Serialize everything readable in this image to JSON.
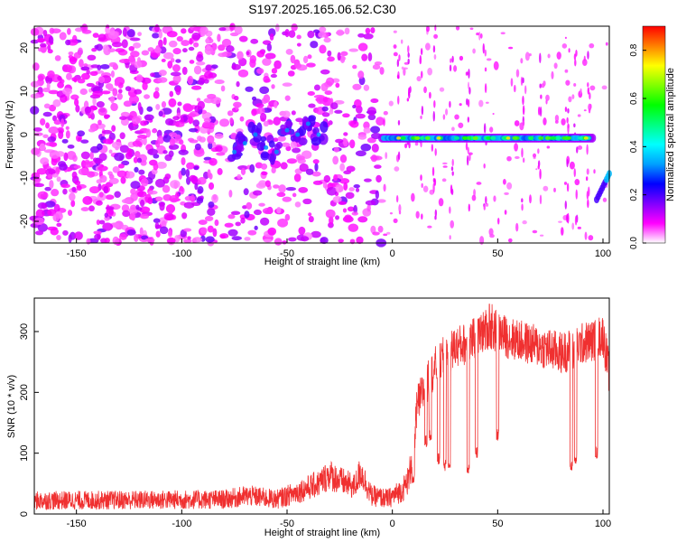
{
  "title": "S197.2025.165.06.52.C30",
  "chart_data": [
    {
      "type": "heatmap",
      "xlabel": "Height of straight line (km)",
      "ylabel": "Frequency (Hz)",
      "xlim": [
        -170,
        103
      ],
      "ylim": [
        -25,
        25
      ],
      "xticks": [
        -150,
        -100,
        -50,
        0,
        50,
        100
      ],
      "yticks": [
        -20,
        -10,
        0,
        10,
        20
      ],
      "colorbar": {
        "label": "Normalized spectral amplitude",
        "range": [
          0,
          0.9
        ],
        "ticks": [
          0.0,
          0.2,
          0.4,
          0.6,
          0.8
        ],
        "tick_labels": [
          "0.0",
          "0.2",
          "0.4",
          "0.6",
          "0.8"
        ],
        "colormap": [
          "#ffffff",
          "#ff00ff",
          "#8000ff",
          "#0000ff",
          "#00a0ff",
          "#00ffff",
          "#00ff80",
          "#00ff00",
          "#80ff00",
          "#ffff00",
          "#ff8000",
          "#ff0000"
        ]
      },
      "features": {
        "noise_region_x": [
          -170,
          -5
        ],
        "carrier_band_x": [
          -5,
          95
        ],
        "carrier_band_freq": -0.8,
        "wandering_track": [
          {
            "x": -75,
            "f": -4
          },
          {
            "x": -70,
            "f": -2
          },
          {
            "x": -65,
            "f": 0
          },
          {
            "x": -60,
            "f": -3
          },
          {
            "x": -55,
            "f": -4
          },
          {
            "x": -50,
            "f": 1
          },
          {
            "x": -45,
            "f": 0
          },
          {
            "x": -40,
            "f": 2.5
          },
          {
            "x": -35,
            "f": 0
          }
        ],
        "tail_x": [
          97,
          103
        ],
        "tail_freq": [
          -15,
          -9
        ]
      }
    },
    {
      "type": "line",
      "xlabel": "Height of straight line (km)",
      "ylabel": "SNR (10 * v/v)",
      "xlim": [
        -170,
        103
      ],
      "ylim": [
        0,
        355
      ],
      "xticks": [
        -150,
        -100,
        -50,
        0,
        50,
        100
      ],
      "yticks": [
        0,
        100,
        200,
        300
      ],
      "color": "#f03030",
      "trend": [
        {
          "x": -170,
          "y": 22
        },
        {
          "x": -80,
          "y": 24
        },
        {
          "x": -68,
          "y": 30
        },
        {
          "x": -55,
          "y": 24
        },
        {
          "x": -50,
          "y": 30
        },
        {
          "x": -35,
          "y": 50
        },
        {
          "x": -30,
          "y": 65
        },
        {
          "x": -25,
          "y": 55
        },
        {
          "x": -18,
          "y": 45
        },
        {
          "x": -15,
          "y": 70
        },
        {
          "x": -10,
          "y": 30
        },
        {
          "x": -2,
          "y": 25
        },
        {
          "x": 5,
          "y": 40
        },
        {
          "x": 8,
          "y": 60
        },
        {
          "x": 10,
          "y": 120
        },
        {
          "x": 12,
          "y": 180
        },
        {
          "x": 16,
          "y": 210
        },
        {
          "x": 20,
          "y": 240
        },
        {
          "x": 25,
          "y": 260
        },
        {
          "x": 30,
          "y": 275
        },
        {
          "x": 35,
          "y": 280
        },
        {
          "x": 40,
          "y": 290
        },
        {
          "x": 45,
          "y": 305
        },
        {
          "x": 50,
          "y": 300
        },
        {
          "x": 55,
          "y": 290
        },
        {
          "x": 60,
          "y": 285
        },
        {
          "x": 65,
          "y": 280
        },
        {
          "x": 70,
          "y": 275
        },
        {
          "x": 75,
          "y": 270
        },
        {
          "x": 80,
          "y": 265
        },
        {
          "x": 85,
          "y": 270
        },
        {
          "x": 90,
          "y": 280
        },
        {
          "x": 95,
          "y": 285
        },
        {
          "x": 100,
          "y": 295
        },
        {
          "x": 103,
          "y": 230
        }
      ],
      "dropouts": [
        {
          "x": 10,
          "y": 55
        },
        {
          "x": 16,
          "y": 120
        },
        {
          "x": 18,
          "y": 130
        },
        {
          "x": 22,
          "y": 90
        },
        {
          "x": 25,
          "y": 80
        },
        {
          "x": 27,
          "y": 85
        },
        {
          "x": 36,
          "y": 75
        },
        {
          "x": 40,
          "y": 100
        },
        {
          "x": 50,
          "y": 130
        },
        {
          "x": 85,
          "y": 80
        },
        {
          "x": 87,
          "y": 90
        },
        {
          "x": 97,
          "y": 100
        }
      ]
    }
  ]
}
